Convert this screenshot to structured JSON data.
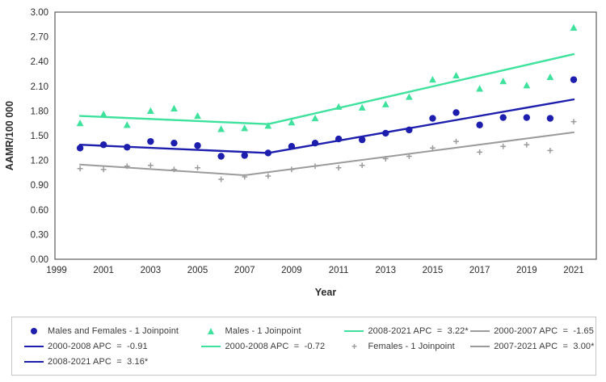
{
  "colors": {
    "males_and_females": "#1d1ead",
    "males": "#3ee29d",
    "females": "#9b9b9b",
    "axis_line": "#3d3d3d",
    "tick_text": "#2b2b2b",
    "legend_border": "#c6c6c6",
    "legend_text": "#3a3a3a"
  },
  "chart_data": {
    "type": "line",
    "title": "",
    "xlabel": "Year",
    "ylabel": "AAMR/100 000",
    "xlim": [
      1999,
      2022
    ],
    "ylim": [
      0,
      3
    ],
    "grid": false,
    "x_ticks": [
      1999,
      2001,
      2003,
      2005,
      2007,
      2009,
      2011,
      2013,
      2015,
      2017,
      2019,
      2021
    ],
    "y_ticks": [
      "0.00",
      "0.30",
      "0.60",
      "0.90",
      "1.20",
      "1.50",
      "1.80",
      "2.10",
      "2.40",
      "2.70",
      "3.00"
    ],
    "x": [
      2000,
      2001,
      2002,
      2003,
      2004,
      2005,
      2006,
      2007,
      2008,
      2009,
      2010,
      2011,
      2012,
      2013,
      2014,
      2015,
      2016,
      2017,
      2018,
      2019,
      2020,
      2021
    ],
    "series": [
      {
        "name": "Males and Females - 1 Joinpoint",
        "marker": "circle",
        "color_key": "males_and_females",
        "values": [
          1.35,
          1.39,
          1.36,
          1.43,
          1.41,
          1.38,
          1.25,
          1.26,
          1.29,
          1.37,
          1.41,
          1.46,
          1.45,
          1.53,
          1.57,
          1.71,
          1.78,
          1.63,
          1.72,
          1.72,
          1.71,
          2.18
        ]
      },
      {
        "name": "Males - 1 Joinpoint",
        "marker": "triangle",
        "color_key": "males",
        "values": [
          1.65,
          1.76,
          1.63,
          1.8,
          1.83,
          1.74,
          1.58,
          1.59,
          1.62,
          1.66,
          1.71,
          1.85,
          1.84,
          1.88,
          1.97,
          2.18,
          2.23,
          2.07,
          2.16,
          2.11,
          2.21,
          2.81
        ]
      },
      {
        "name": "Females - 1 Joinpoint",
        "marker": "plus",
        "color_key": "females",
        "values": [
          1.1,
          1.09,
          1.13,
          1.14,
          1.09,
          1.11,
          0.97,
          1.0,
          1.01,
          1.09,
          1.13,
          1.11,
          1.14,
          1.22,
          1.25,
          1.35,
          1.43,
          1.3,
          1.37,
          1.39,
          1.32,
          1.67
        ]
      }
    ],
    "trend_lines": [
      {
        "name": "males-and-females-joinpoint-trend",
        "color_key": "males_and_females",
        "width": 2.4,
        "points": [
          [
            2000,
            1.39
          ],
          [
            2008,
            1.29
          ],
          [
            2021,
            1.94
          ]
        ]
      },
      {
        "name": "males-joinpoint-trend",
        "color_key": "males",
        "width": 2.4,
        "points": [
          [
            2000,
            1.74
          ],
          [
            2008,
            1.64
          ],
          [
            2021,
            2.49
          ]
        ]
      },
      {
        "name": "females-joinpoint-trend",
        "color_key": "females",
        "width": 2.0,
        "points": [
          [
            2000,
            1.15
          ],
          [
            2007,
            1.02
          ],
          [
            2021,
            1.54
          ]
        ]
      }
    ],
    "legend_position": "bottom"
  },
  "legend": {
    "columns": [
      {
        "items": [
          {
            "marker": "circle",
            "color_key": "males_and_females",
            "label": "Males and Females - 1 Joinpoint"
          },
          {
            "marker": "line",
            "color_key": "males_and_females",
            "label": "2000-2008 APC  =  -0.91"
          },
          {
            "marker": "line",
            "color_key": "males_and_females",
            "label": "2008-2021 APC  =  3.16*"
          }
        ]
      },
      {
        "items": [
          {
            "marker": "triangle",
            "color_key": "males",
            "label": "Males - 1 Joinpoint"
          },
          {
            "marker": "line",
            "color_key": "males",
            "label": "2000-2008 APC  =  -0.72"
          }
        ]
      },
      {
        "items": [
          {
            "marker": "line",
            "color_key": "males",
            "label": "2008-2021 APC  =  3.22*"
          },
          {
            "marker": "plus",
            "color_key": "females",
            "label": "Females - 1 Joinpoint"
          }
        ]
      },
      {
        "items": [
          {
            "marker": "line",
            "color_key": "females",
            "label": "2000-2007 APC  =  -1.65"
          },
          {
            "marker": "line",
            "color_key": "females",
            "label": "2007-2021 APC  =  3.00*"
          }
        ]
      }
    ]
  }
}
